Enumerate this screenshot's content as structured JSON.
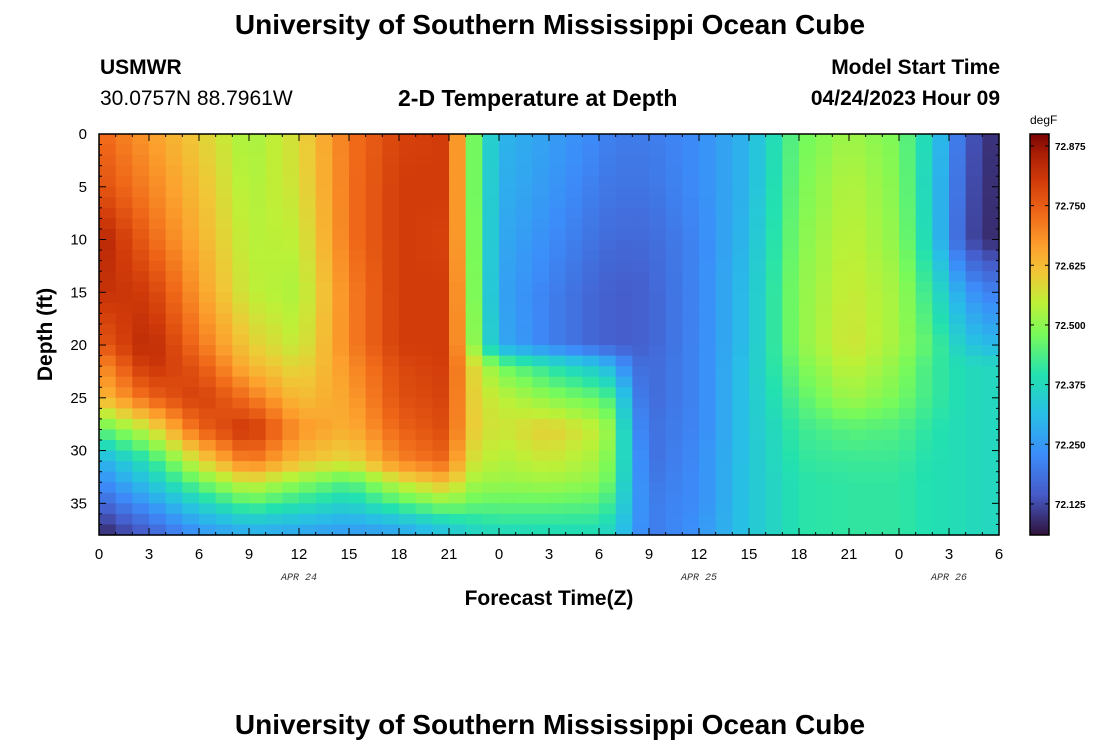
{
  "header": {
    "title": "University of Southern Mississippi Ocean Cube",
    "station": "USMWR",
    "coordinates": "30.0757N  88.7961W",
    "subtitle": "2-D Temperature at Depth",
    "model_start_label": "Model Start Time",
    "model_start_value": "04/24/2023 Hour 09"
  },
  "footer": {
    "title": "University of Southern Mississippi Ocean Cube"
  },
  "chart_data": {
    "type": "heatmap",
    "title": "2-D Temperature at Depth",
    "xlabel": "Forecast Time(Z)",
    "ylabel": "Depth (ft)",
    "x_ticks": [
      "0",
      "3",
      "6",
      "9",
      "12",
      "15",
      "18",
      "21",
      "0",
      "3",
      "6",
      "9",
      "12",
      "15",
      "18",
      "21",
      "0",
      "3",
      "6"
    ],
    "x_date_labels": [
      {
        "label": "APR 24",
        "at_tick": 4
      },
      {
        "label": "APR 25",
        "at_tick": 12
      },
      {
        "label": "APR 26",
        "at_tick": 17
      }
    ],
    "y_ticks": [
      0,
      5,
      10,
      15,
      20,
      25,
      30,
      35
    ],
    "ylim": [
      0,
      38
    ],
    "xlim_hours": [
      0,
      54
    ],
    "colorbar": {
      "unit": "degF",
      "min": 72.06,
      "max": 72.9,
      "tick_labels": [
        "72.875",
        "72.750",
        "72.625",
        "72.500",
        "72.375",
        "72.250",
        "72.125"
      ],
      "tick_values": [
        72.875,
        72.75,
        72.625,
        72.5,
        72.375,
        72.25,
        72.125
      ]
    },
    "value_grid_depths_ft": [
      0,
      5,
      10,
      15,
      20,
      22,
      25,
      28,
      31,
      33,
      35,
      37,
      38
    ],
    "value_grid_hours": [
      0,
      3,
      6,
      9,
      12,
      15,
      18,
      21,
      22,
      23,
      24,
      27,
      30,
      31,
      32,
      33,
      36,
      39,
      42,
      45,
      48,
      50,
      51,
      52,
      54
    ],
    "values_degF": [
      [
        72.74,
        72.67,
        72.6,
        72.52,
        72.58,
        72.72,
        72.79,
        72.8,
        72.55,
        72.4,
        72.3,
        72.26,
        72.22,
        72.2,
        72.2,
        72.2,
        72.23,
        72.3,
        72.47,
        72.52,
        72.48,
        72.35,
        72.25,
        72.15,
        72.08
      ],
      [
        72.77,
        72.7,
        72.62,
        72.53,
        72.57,
        72.72,
        72.8,
        72.8,
        72.55,
        72.4,
        72.29,
        72.25,
        72.2,
        72.19,
        72.19,
        72.19,
        72.23,
        72.3,
        72.48,
        72.54,
        72.49,
        72.34,
        72.24,
        72.14,
        72.08
      ],
      [
        72.85,
        72.74,
        72.64,
        72.54,
        72.55,
        72.72,
        72.8,
        72.79,
        72.56,
        72.4,
        72.28,
        72.23,
        72.18,
        72.17,
        72.17,
        72.17,
        72.22,
        72.31,
        72.49,
        72.55,
        72.5,
        72.35,
        72.23,
        72.13,
        72.08
      ],
      [
        72.82,
        72.8,
        72.67,
        72.55,
        72.53,
        72.7,
        72.8,
        72.8,
        72.57,
        72.4,
        72.27,
        72.21,
        72.16,
        72.15,
        72.15,
        72.16,
        72.22,
        72.32,
        72.5,
        72.56,
        72.52,
        72.4,
        72.33,
        72.25,
        72.2
      ],
      [
        72.75,
        72.84,
        72.72,
        72.6,
        72.55,
        72.7,
        72.8,
        72.8,
        72.58,
        72.42,
        72.28,
        72.21,
        72.16,
        72.15,
        72.15,
        72.16,
        72.22,
        72.32,
        72.5,
        72.57,
        72.52,
        72.44,
        72.39,
        72.33,
        72.3
      ],
      [
        72.68,
        72.82,
        72.76,
        72.63,
        72.58,
        72.68,
        72.78,
        72.8,
        72.62,
        72.55,
        72.48,
        72.4,
        72.33,
        72.28,
        72.19,
        72.17,
        72.22,
        72.33,
        72.48,
        72.55,
        72.5,
        72.42,
        72.4,
        72.38,
        72.37
      ],
      [
        72.62,
        72.74,
        72.8,
        72.72,
        72.62,
        72.66,
        72.77,
        72.79,
        72.62,
        72.57,
        72.55,
        72.5,
        72.46,
        72.42,
        72.23,
        72.17,
        72.22,
        72.33,
        72.45,
        72.52,
        72.48,
        72.42,
        72.4,
        72.38,
        72.37
      ],
      [
        72.45,
        72.56,
        72.74,
        72.82,
        72.68,
        72.64,
        72.74,
        72.78,
        72.62,
        72.58,
        72.56,
        72.6,
        72.55,
        72.48,
        72.26,
        72.18,
        72.22,
        72.33,
        72.42,
        72.45,
        72.44,
        72.4,
        72.39,
        72.38,
        72.37
      ],
      [
        72.28,
        72.4,
        72.58,
        72.72,
        72.62,
        72.58,
        72.7,
        72.74,
        72.58,
        72.56,
        72.53,
        72.56,
        72.52,
        72.46,
        72.28,
        72.18,
        72.23,
        72.33,
        72.41,
        72.42,
        72.42,
        72.39,
        72.39,
        72.38,
        72.37
      ],
      [
        72.22,
        72.33,
        72.47,
        72.57,
        72.5,
        72.44,
        72.56,
        72.63,
        72.53,
        72.52,
        72.51,
        72.52,
        72.5,
        72.44,
        72.28,
        72.19,
        72.23,
        72.33,
        72.4,
        72.41,
        72.41,
        72.39,
        72.39,
        72.38,
        72.37
      ],
      [
        72.16,
        72.25,
        72.36,
        72.45,
        72.4,
        72.36,
        72.44,
        72.5,
        72.47,
        72.46,
        72.46,
        72.46,
        72.45,
        72.4,
        72.28,
        72.2,
        72.23,
        72.33,
        72.4,
        72.41,
        72.41,
        72.39,
        72.39,
        72.38,
        72.37
      ],
      [
        72.1,
        72.18,
        72.27,
        72.32,
        72.3,
        72.27,
        72.3,
        72.36,
        72.38,
        72.39,
        72.4,
        72.4,
        72.4,
        72.36,
        72.27,
        72.2,
        72.24,
        72.33,
        72.4,
        72.41,
        72.41,
        72.39,
        72.39,
        72.38,
        72.37
      ],
      [
        72.08,
        72.15,
        72.24,
        72.28,
        72.27,
        72.25,
        72.27,
        72.32,
        72.35,
        72.36,
        72.37,
        72.38,
        72.38,
        72.35,
        72.27,
        72.2,
        72.24,
        72.33,
        72.4,
        72.41,
        72.41,
        72.39,
        72.39,
        72.38,
        72.37
      ]
    ]
  }
}
